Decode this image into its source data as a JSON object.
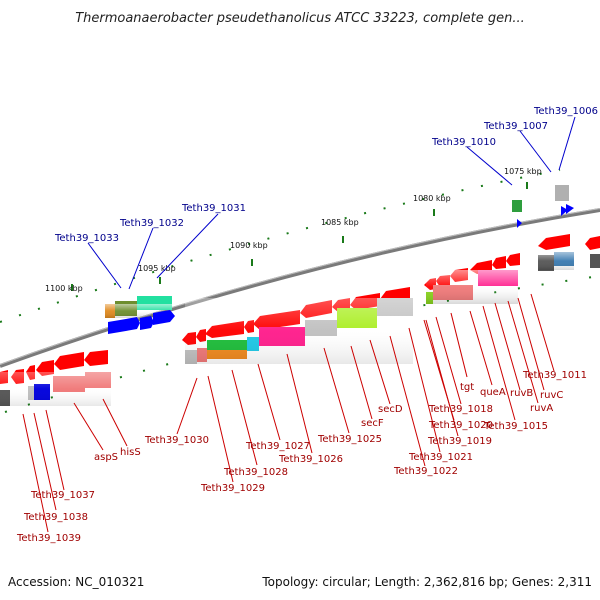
{
  "title": "Thermoanaerobacter pseudethanolicus ATCC 33223, complete gen...",
  "footer": {
    "accession": "Accession: NC_010321",
    "summary": "Topology: circular; Length: 2,362,816 bp; Genes: 2,311"
  },
  "ticks": [
    "1100 kbp",
    "1095 kbp",
    "1090 kbp",
    "1085 kbp",
    "1080 kbp",
    "1075 kbp"
  ],
  "blue_labels": [
    "Teth39_1006",
    "Teth39_1007",
    "Teth39_1010",
    "Teth39_1031",
    "Teth39_1032",
    "Teth39_1033"
  ],
  "red_labels": [
    "Teth39_1011",
    "ruvC",
    "ruvA",
    "ruvB",
    "Teth39_1015",
    "queA",
    "tgt",
    "Teth39_1018",
    "Teth39_1019",
    "Teth39_1020",
    "Teth39_1021",
    "Teth39_1022",
    "secD",
    "secF",
    "Teth39_1025",
    "Teth39_1026",
    "Teth39_1027",
    "Teth39_1028",
    "Teth39_1029",
    "Teth39_1030",
    "hisS",
    "aspS",
    "Teth39_1037",
    "Teth39_1038",
    "Teth39_1039"
  ],
  "colors": {
    "backbone": "#808080",
    "tick": "#1a7a1a",
    "forward_gene": "#0000ff",
    "reverse_gene": "#ff0000",
    "blue_leader": "#0000cc",
    "red_leader": "#cc0000"
  }
}
